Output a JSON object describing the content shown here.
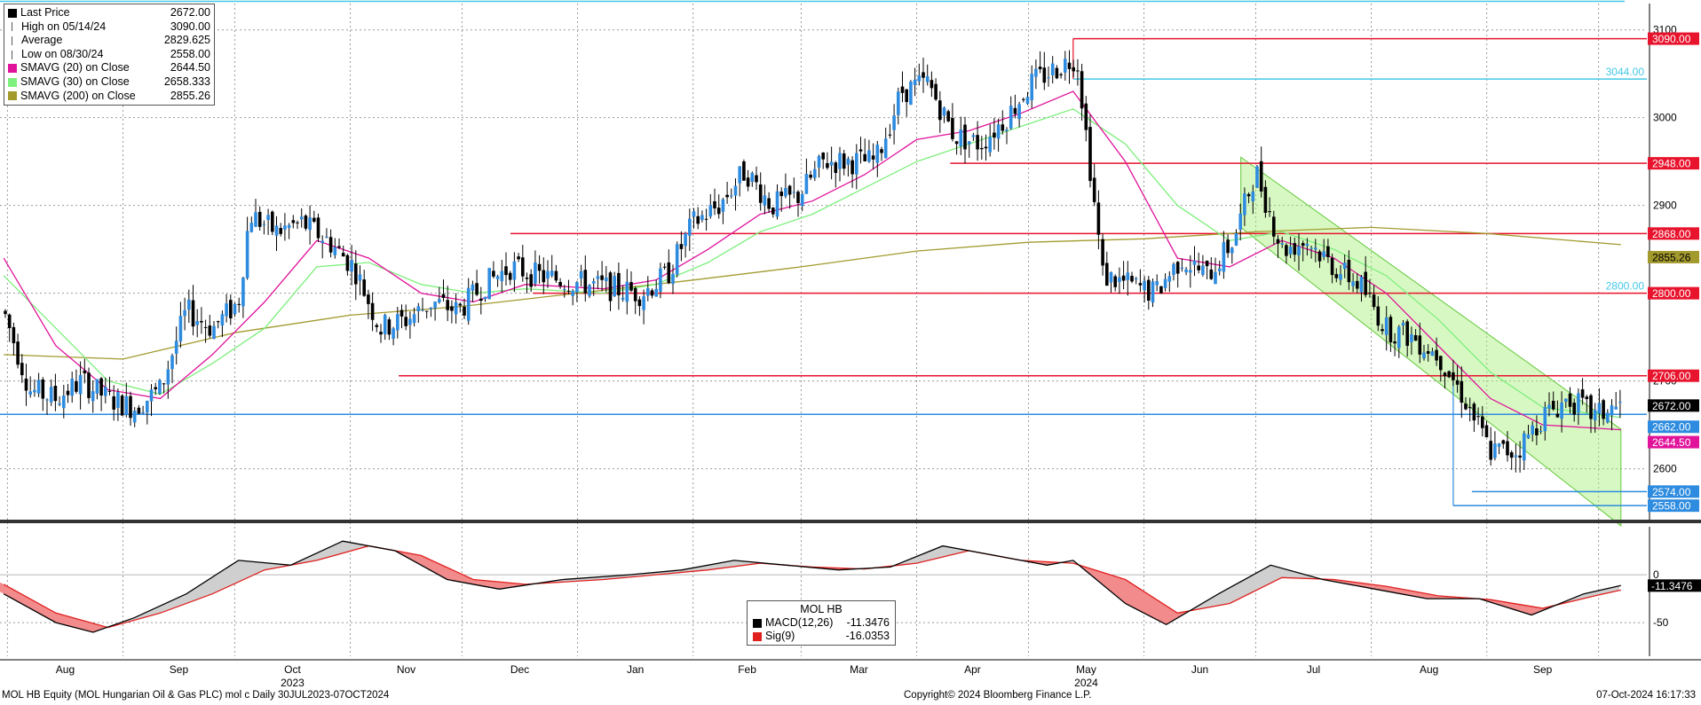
{
  "legend": [
    {
      "name": "Last Price",
      "value": "2672.00",
      "color": "#000000",
      "marker": "box"
    },
    {
      "name": "High on 05/14/24",
      "value": "3090.00",
      "color": "#555555",
      "marker": "tick"
    },
    {
      "name": "Average",
      "value": "2829.625",
      "color": "#555555",
      "marker": "plus"
    },
    {
      "name": "Low on 08/30/24",
      "value": "2558.00",
      "color": "#555555",
      "marker": "tick"
    },
    {
      "name": "SMAVG (20)  on Close",
      "value": "2644.50",
      "color": "#e0139a",
      "marker": "box"
    },
    {
      "name": "SMAVG (30)  on Close",
      "value": "2658.333",
      "color": "#7df07d",
      "marker": "box"
    },
    {
      "name": "SMAVG (200)  on Close",
      "value": "2855.26",
      "color": "#a39a2e",
      "marker": "box"
    }
  ],
  "macd_legend": {
    "title": "MOL HB",
    "rows": [
      {
        "name": "MACD(12,26)",
        "value": "-11.3476",
        "color": "#000000"
      },
      {
        "name": "Sig(9)",
        "value": "-16.0353",
        "color": "#e0201f"
      }
    ]
  },
  "footer": {
    "left": "MOL HB Equity (MOL Hungarian Oil & Gas PLC) mol c  Daily 30JUL2023-07OCT2024",
    "center": "Copyright© 2024 Bloomberg Finance L.P.",
    "right": "07-Oct-2024 16:17:33"
  },
  "chart_data": [
    {
      "type": "candlestick",
      "series_name": "MOL HB",
      "y_ticks": [
        2600,
        2700,
        2800,
        2900,
        3000,
        3100
      ],
      "ylim": [
        2540,
        3130
      ],
      "x_ticks": [
        "Aug",
        "Sep",
        "Oct",
        "Nov",
        "Dec",
        "Jan",
        "Feb",
        "Mar",
        "Apr",
        "May",
        "Jun",
        "Jul",
        "Aug",
        "Sep"
      ],
      "year_labels": [
        {
          "label": "2023",
          "month_index": 2
        },
        {
          "label": "2024",
          "month_index": 9
        }
      ],
      "grid": true,
      "price_points": [
        [
          "2023-07-31",
          2780
        ],
        [
          "2023-08-07",
          2690
        ],
        [
          "2023-08-14",
          2680
        ],
        [
          "2023-08-21",
          2700
        ],
        [
          "2023-08-28",
          2680
        ],
        [
          "2023-09-04",
          2670
        ],
        [
          "2023-09-11",
          2690
        ],
        [
          "2023-09-18",
          2780
        ],
        [
          "2023-09-25",
          2760
        ],
        [
          "2023-10-02",
          2790
        ],
        [
          "2023-10-05",
          2890
        ],
        [
          "2023-10-12",
          2870
        ],
        [
          "2023-10-19",
          2880
        ],
        [
          "2023-10-26",
          2860
        ],
        [
          "2023-11-02",
          2830
        ],
        [
          "2023-11-09",
          2760
        ],
        [
          "2023-11-16",
          2770
        ],
        [
          "2023-11-23",
          2790
        ],
        [
          "2023-11-30",
          2780
        ],
        [
          "2023-12-07",
          2810
        ],
        [
          "2023-12-14",
          2830
        ],
        [
          "2023-12-21",
          2820
        ],
        [
          "2024-01-04",
          2810
        ],
        [
          "2024-01-18",
          2800
        ],
        [
          "2024-01-25",
          2820
        ],
        [
          "2024-02-01",
          2880
        ],
        [
          "2024-02-08",
          2900
        ],
        [
          "2024-02-15",
          2940
        ],
        [
          "2024-02-22",
          2900
        ],
        [
          "2024-02-29",
          2910
        ],
        [
          "2024-03-07",
          2950
        ],
        [
          "2024-03-14",
          2950
        ],
        [
          "2024-03-21",
          2950
        ],
        [
          "2024-03-28",
          3030
        ],
        [
          "2024-04-04",
          3040
        ],
        [
          "2024-04-11",
          2980
        ],
        [
          "2024-04-18",
          2970
        ],
        [
          "2024-04-25",
          3000
        ],
        [
          "2024-05-02",
          3040
        ],
        [
          "2024-05-10",
          3060
        ],
        [
          "2024-05-14",
          3070
        ],
        [
          "2024-05-21",
          2820
        ],
        [
          "2024-05-28",
          2810
        ],
        [
          "2024-06-04",
          2800
        ],
        [
          "2024-06-11",
          2840
        ],
        [
          "2024-06-18",
          2820
        ],
        [
          "2024-06-25",
          2860
        ],
        [
          "2024-07-01",
          2940
        ],
        [
          "2024-07-08",
          2850
        ],
        [
          "2024-07-15",
          2860
        ],
        [
          "2024-07-22",
          2830
        ],
        [
          "2024-07-29",
          2810
        ],
        [
          "2024-08-05",
          2760
        ],
        [
          "2024-08-12",
          2750
        ],
        [
          "2024-08-19",
          2730
        ],
        [
          "2024-08-26",
          2680
        ],
        [
          "2024-09-02",
          2620
        ],
        [
          "2024-09-09",
          2620
        ],
        [
          "2024-09-16",
          2660
        ],
        [
          "2024-09-23",
          2680
        ],
        [
          "2024-09-30",
          2660
        ],
        [
          "2024-10-07",
          2672
        ]
      ],
      "sma20": [
        [
          "2023-07-31",
          2840
        ],
        [
          "2023-08-14",
          2740
        ],
        [
          "2023-08-28",
          2690
        ],
        [
          "2023-09-11",
          2680
        ],
        [
          "2023-09-25",
          2730
        ],
        [
          "2023-10-09",
          2790
        ],
        [
          "2023-10-23",
          2860
        ],
        [
          "2023-11-06",
          2840
        ],
        [
          "2023-11-20",
          2800
        ],
        [
          "2023-12-04",
          2790
        ],
        [
          "2023-12-18",
          2810
        ],
        [
          "2024-01-08",
          2805
        ],
        [
          "2024-01-22",
          2815
        ],
        [
          "2024-02-05",
          2850
        ],
        [
          "2024-02-19",
          2890
        ],
        [
          "2024-03-04",
          2905
        ],
        [
          "2024-03-18",
          2935
        ],
        [
          "2024-04-01",
          2975
        ],
        [
          "2024-04-15",
          2985
        ],
        [
          "2024-04-29",
          3005
        ],
        [
          "2024-05-13",
          3030
        ],
        [
          "2024-05-27",
          2950
        ],
        [
          "2024-06-10",
          2840
        ],
        [
          "2024-06-24",
          2830
        ],
        [
          "2024-07-08",
          2860
        ],
        [
          "2024-07-22",
          2840
        ],
        [
          "2024-08-05",
          2800
        ],
        [
          "2024-08-19",
          2740
        ],
        [
          "2024-09-02",
          2680
        ],
        [
          "2024-09-16",
          2650
        ],
        [
          "2024-10-07",
          2644.5
        ]
      ],
      "sma30": [
        [
          "2023-07-31",
          2820
        ],
        [
          "2023-08-14",
          2760
        ],
        [
          "2023-08-28",
          2700
        ],
        [
          "2023-09-11",
          2685
        ],
        [
          "2023-09-25",
          2720
        ],
        [
          "2023-10-09",
          2760
        ],
        [
          "2023-10-23",
          2830
        ],
        [
          "2023-11-06",
          2835
        ],
        [
          "2023-11-20",
          2810
        ],
        [
          "2023-12-04",
          2800
        ],
        [
          "2023-12-18",
          2805
        ],
        [
          "2024-01-08",
          2800
        ],
        [
          "2024-01-22",
          2810
        ],
        [
          "2024-02-05",
          2835
        ],
        [
          "2024-02-19",
          2870
        ],
        [
          "2024-03-04",
          2890
        ],
        [
          "2024-03-18",
          2920
        ],
        [
          "2024-04-01",
          2950
        ],
        [
          "2024-04-15",
          2970
        ],
        [
          "2024-04-29",
          2990
        ],
        [
          "2024-05-13",
          3010
        ],
        [
          "2024-05-27",
          2970
        ],
        [
          "2024-06-10",
          2900
        ],
        [
          "2024-06-24",
          2860
        ],
        [
          "2024-07-08",
          2870
        ],
        [
          "2024-07-22",
          2850
        ],
        [
          "2024-08-05",
          2820
        ],
        [
          "2024-08-19",
          2770
        ],
        [
          "2024-09-02",
          2710
        ],
        [
          "2024-09-16",
          2670
        ],
        [
          "2024-10-07",
          2658.333
        ]
      ],
      "sma200": [
        [
          "2023-07-31",
          2730
        ],
        [
          "2023-09-01",
          2725
        ],
        [
          "2023-10-01",
          2755
        ],
        [
          "2023-11-01",
          2775
        ],
        [
          "2023-12-01",
          2785
        ],
        [
          "2024-01-01",
          2800
        ],
        [
          "2024-02-01",
          2815
        ],
        [
          "2024-03-01",
          2830
        ],
        [
          "2024-04-01",
          2848
        ],
        [
          "2024-05-01",
          2858
        ],
        [
          "2024-06-01",
          2862
        ],
        [
          "2024-07-01",
          2870
        ],
        [
          "2024-08-01",
          2875
        ],
        [
          "2024-09-01",
          2868
        ],
        [
          "2024-10-07",
          2855.26
        ]
      ],
      "horizontal_levels": [
        {
          "value": 3090,
          "label": "3090.00",
          "color": "#e8132c",
          "style": "label-box"
        },
        {
          "value": 3044,
          "label": "3044.00",
          "color": "#45c8e6",
          "style": "text"
        },
        {
          "value": 2948,
          "label": "2948.00",
          "color": "#e8132c",
          "style": "label-box"
        },
        {
          "value": 2868,
          "label": "2868.00",
          "color": "#e8132c",
          "style": "label-box"
        },
        {
          "value": 2855.26,
          "label": "2855.26",
          "color": "#a39a2e",
          "style": "label-box"
        },
        {
          "value": 2800,
          "label": "2800.00",
          "color": "#45c8e6",
          "style": "text"
        },
        {
          "value": 2800,
          "label": "2800.00",
          "color": "#e8132c",
          "style": "label-box"
        },
        {
          "value": 2706,
          "label": "2706.00",
          "color": "#e8132c",
          "style": "label-box"
        },
        {
          "value": 2672,
          "label": "2672.00",
          "color": "#000000",
          "style": "label-box"
        },
        {
          "value": 2662,
          "label": "2662.00",
          "color": "#2d8be0",
          "style": "label-box"
        },
        {
          "value": 2644.5,
          "label": "2644.50",
          "color": "#e0139a",
          "style": "label-box"
        },
        {
          "value": 2574,
          "label": "2574.00",
          "color": "#2d8be0",
          "style": "label-box"
        },
        {
          "value": 2558,
          "label": "2558.00",
          "color": "#2d8be0",
          "style": "label-box"
        }
      ],
      "channel": {
        "start": "2024-06-27",
        "end": "2024-10-07",
        "upper": [
          2955,
          2645
        ],
        "lower": [
          2875,
          2535
        ],
        "color": "#a8f07a"
      }
    },
    {
      "type": "line",
      "series_name": "MACD",
      "y_ticks": [
        0,
        -50
      ],
      "ylim": [
        -85,
        50
      ],
      "grid": true,
      "macd": [
        [
          "2023-07-31",
          -20
        ],
        [
          "2023-08-14",
          -50
        ],
        [
          "2023-08-24",
          -60
        ],
        [
          "2023-09-04",
          -45
        ],
        [
          "2023-09-18",
          -20
        ],
        [
          "2023-10-02",
          15
        ],
        [
          "2023-10-16",
          10
        ],
        [
          "2023-10-30",
          35
        ],
        [
          "2023-11-13",
          25
        ],
        [
          "2023-11-27",
          -5
        ],
        [
          "2023-12-11",
          -15
        ],
        [
          "2023-12-28",
          -5
        ],
        [
          "2024-01-15",
          0
        ],
        [
          "2024-01-29",
          5
        ],
        [
          "2024-02-12",
          15
        ],
        [
          "2024-02-26",
          10
        ],
        [
          "2024-03-11",
          5
        ],
        [
          "2024-03-25",
          8
        ],
        [
          "2024-04-08",
          30
        ],
        [
          "2024-04-22",
          20
        ],
        [
          "2024-05-06",
          10
        ],
        [
          "2024-05-13",
          15
        ],
        [
          "2024-05-27",
          -30
        ],
        [
          "2024-06-07",
          -52
        ],
        [
          "2024-06-21",
          -20
        ],
        [
          "2024-07-05",
          10
        ],
        [
          "2024-07-19",
          -5
        ],
        [
          "2024-08-02",
          -15
        ],
        [
          "2024-08-16",
          -25
        ],
        [
          "2024-08-30",
          -25
        ],
        [
          "2024-09-13",
          -42
        ],
        [
          "2024-09-27",
          -20
        ],
        [
          "2024-10-07",
          -11.3476
        ]
      ],
      "signal": [
        [
          "2023-07-31",
          -10
        ],
        [
          "2023-08-14",
          -40
        ],
        [
          "2023-08-28",
          -55
        ],
        [
          "2023-09-11",
          -40
        ],
        [
          "2023-09-25",
          -20
        ],
        [
          "2023-10-09",
          5
        ],
        [
          "2023-10-23",
          15
        ],
        [
          "2023-11-06",
          30
        ],
        [
          "2023-11-20",
          20
        ],
        [
          "2023-12-04",
          -5
        ],
        [
          "2023-12-18",
          -10
        ],
        [
          "2024-01-08",
          -5
        ],
        [
          "2024-01-22",
          0
        ],
        [
          "2024-02-05",
          5
        ],
        [
          "2024-02-19",
          12
        ],
        [
          "2024-03-04",
          8
        ],
        [
          "2024-03-18",
          6
        ],
        [
          "2024-04-01",
          12
        ],
        [
          "2024-04-15",
          25
        ],
        [
          "2024-04-29",
          15
        ],
        [
          "2024-05-13",
          12
        ],
        [
          "2024-05-27",
          -5
        ],
        [
          "2024-06-10",
          -40
        ],
        [
          "2024-06-24",
          -30
        ],
        [
          "2024-07-08",
          -3
        ],
        [
          "2024-07-22",
          -5
        ],
        [
          "2024-08-05",
          -12
        ],
        [
          "2024-08-19",
          -22
        ],
        [
          "2024-09-02",
          -26
        ],
        [
          "2024-09-16",
          -35
        ],
        [
          "2024-09-30",
          -22
        ],
        [
          "2024-10-07",
          -16.0353
        ]
      ],
      "right_labels": [
        {
          "value": -11.3476,
          "label": "-11.3476",
          "color": "#000000"
        }
      ]
    }
  ],
  "colors": {
    "up": "#2d8be0",
    "down": "#000000",
    "grid": "#808080"
  }
}
